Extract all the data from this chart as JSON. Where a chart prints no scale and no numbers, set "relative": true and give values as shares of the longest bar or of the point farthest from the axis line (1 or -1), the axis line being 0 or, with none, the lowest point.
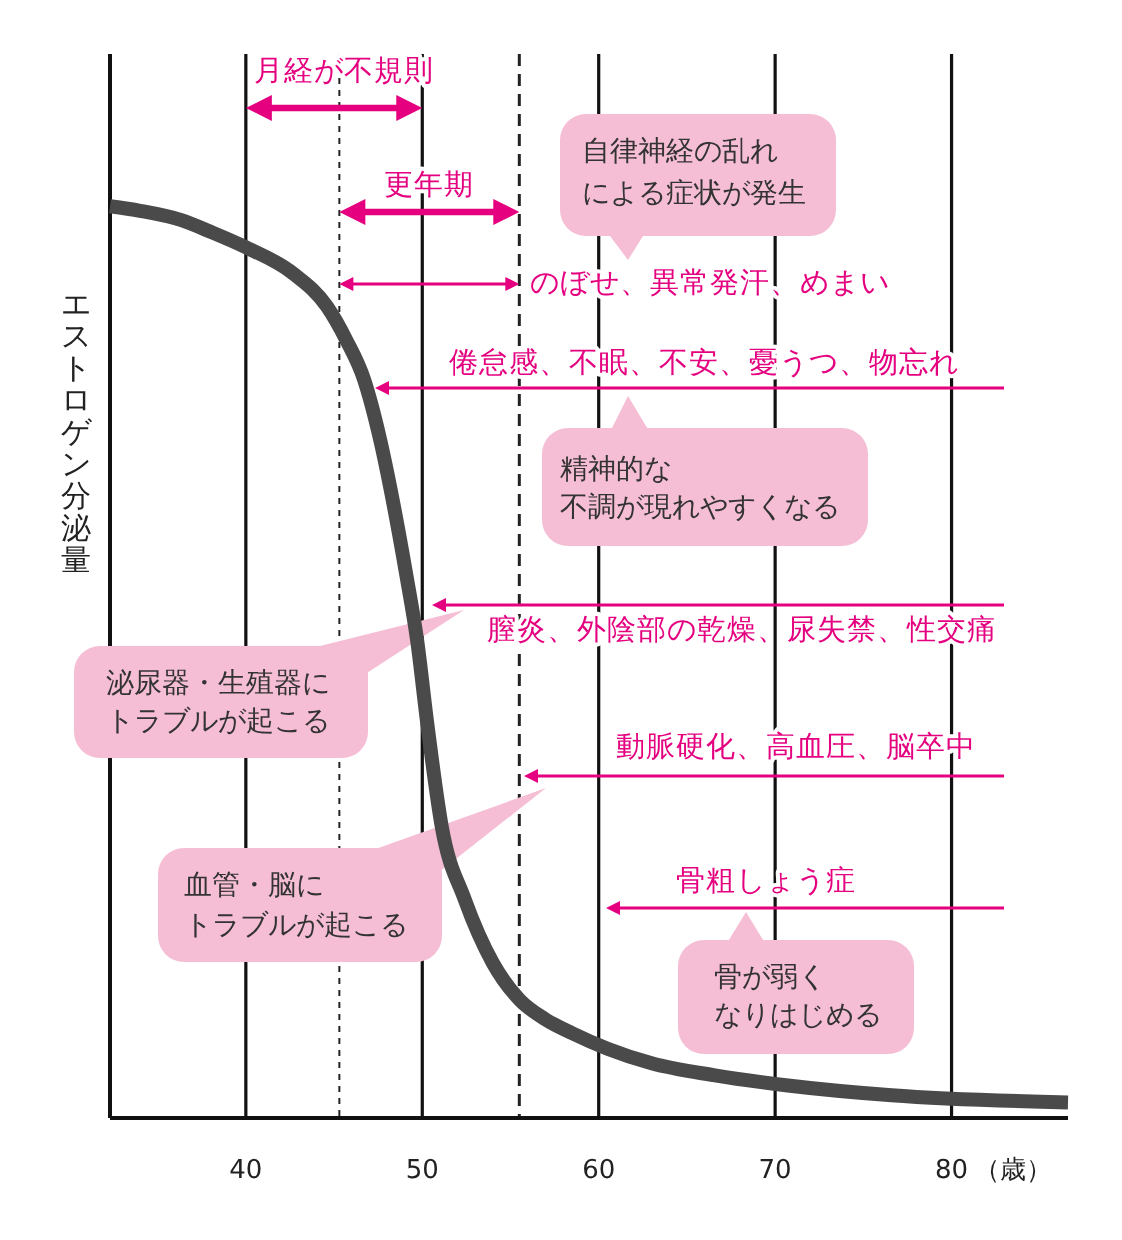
{
  "chart_data": {
    "type": "line",
    "relative": true,
    "ylabel": "エストロゲン分泌量",
    "xlabel": "（歳）",
    "x": [
      32.3,
      34,
      36.3,
      38,
      40,
      42.7,
      44.6,
      45.7,
      46.7,
      47.6,
      48.4,
      49.1,
      49.7,
      50.3,
      51.1,
      52.4,
      54,
      55.5,
      57,
      58.5,
      60.5,
      63,
      66.5,
      70.6,
      76.6,
      86.6
    ],
    "series": [
      {
        "color": "#4a4a4a",
        "values": [
          1,
          0.995,
          0.985,
          0.972,
          0.955,
          0.926,
          0.89,
          0.853,
          0.81,
          0.745,
          0.67,
          0.595,
          0.525,
          0.43,
          0.32,
          0.24,
          0.17,
          0.13,
          0.108,
          0.093,
          0.076,
          0.06,
          0.047,
          0.036,
          0.025,
          0.017
        ]
      }
    ],
    "xlim": [
      32.3,
      86.6
    ],
    "xticks": [
      40,
      50,
      60,
      70,
      80
    ],
    "grid": "x",
    "ref_lines": [
      {
        "axis": "x",
        "value": 45.3,
        "line_style": "dotted",
        "color": "#222222"
      },
      {
        "axis": "x",
        "value": 55.5,
        "line_style": "dashed",
        "color": "#222222"
      }
    ],
    "annotations": [
      "月経が不規則",
      "更年期",
      "自律神経の乱れによる症状が発生",
      "のぼせ、異常発汗、めまい",
      "倦怠感、不眠、不安、憂うつ、物忘れ",
      "精神的な不調が現れやすくなる",
      "膣炎、外陰部の乾燥、尿失禁、性交痛",
      "泌尿器・生殖器にトラブルが起こる",
      "動脈硬化、高血圧、脳卒中",
      "血管・脳にトラブルが起こる",
      "骨粗しょう症",
      "骨が弱くなりはじめる"
    ]
  }
}
